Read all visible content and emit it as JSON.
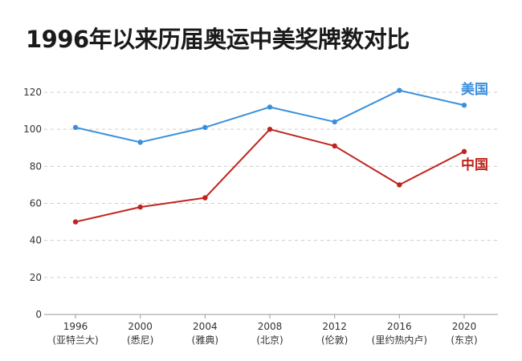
{
  "title": "1996年以来历届奥运中美奖牌数对比",
  "chart_data": {
    "type": "line",
    "title": "1996年以来历届奥运中美奖牌数对比",
    "x": [
      "1996",
      "2000",
      "2004",
      "2008",
      "2012",
      "2016",
      "2020"
    ],
    "x_sublabels": [
      "(亚特兰大)",
      "(悉尼)",
      "(雅典)",
      "(北京)",
      "(伦敦)",
      "(里约热内卢)",
      "(东京)"
    ],
    "ylim": [
      0,
      130
    ],
    "yticks": [
      0,
      20,
      40,
      60,
      80,
      100,
      120
    ],
    "grid": true,
    "series": [
      {
        "name": "美国",
        "color": "#3a8fdc",
        "values": [
          101,
          93,
          101,
          112,
          104,
          121,
          113
        ]
      },
      {
        "name": "中国",
        "color": "#c0231d",
        "values": [
          50,
          58,
          63,
          100,
          91,
          70,
          88
        ]
      }
    ]
  }
}
